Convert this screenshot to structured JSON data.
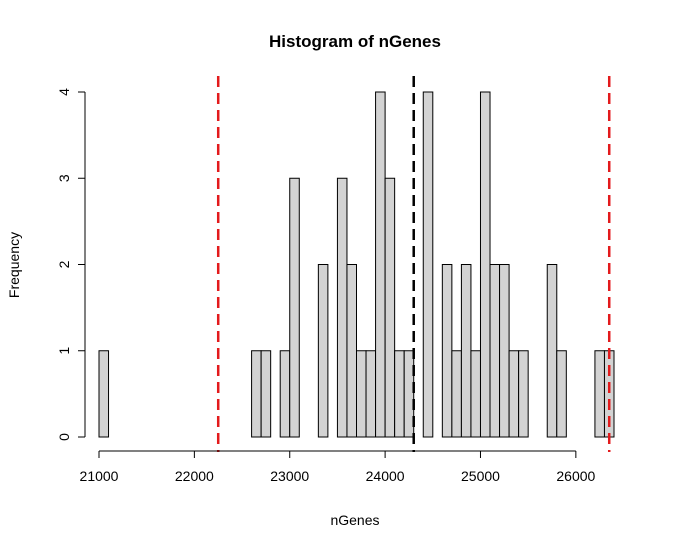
{
  "chart_data": {
    "type": "bar",
    "title": "Histogram of nGenes",
    "xlabel": "nGenes",
    "ylabel": "Frequency",
    "bin_width": 100,
    "xlim": [
      21000,
      26400
    ],
    "ylim": [
      0,
      4
    ],
    "x_ticks": [
      21000,
      22000,
      23000,
      24000,
      25000,
      26000
    ],
    "y_ticks": [
      0,
      1,
      2,
      3,
      4
    ],
    "bar_fill": "#d3d3d3",
    "bar_stroke": "#000000",
    "bins": [
      {
        "start": 21000,
        "count": 1
      },
      {
        "start": 22600,
        "count": 1
      },
      {
        "start": 22700,
        "count": 1
      },
      {
        "start": 22900,
        "count": 1
      },
      {
        "start": 23000,
        "count": 3
      },
      {
        "start": 23300,
        "count": 2
      },
      {
        "start": 23500,
        "count": 3
      },
      {
        "start": 23600,
        "count": 2
      },
      {
        "start": 23700,
        "count": 1
      },
      {
        "start": 23800,
        "count": 1
      },
      {
        "start": 23900,
        "count": 4
      },
      {
        "start": 24000,
        "count": 3
      },
      {
        "start": 24100,
        "count": 1
      },
      {
        "start": 24200,
        "count": 1
      },
      {
        "start": 24400,
        "count": 4
      },
      {
        "start": 24600,
        "count": 2
      },
      {
        "start": 24700,
        "count": 1
      },
      {
        "start": 24800,
        "count": 2
      },
      {
        "start": 24900,
        "count": 1
      },
      {
        "start": 25000,
        "count": 4
      },
      {
        "start": 25100,
        "count": 2
      },
      {
        "start": 25200,
        "count": 2
      },
      {
        "start": 25300,
        "count": 1
      },
      {
        "start": 25400,
        "count": 1
      },
      {
        "start": 25700,
        "count": 2
      },
      {
        "start": 25800,
        "count": 1
      },
      {
        "start": 26200,
        "count": 1
      },
      {
        "start": 26300,
        "count": 1
      }
    ],
    "reference_lines": [
      {
        "x": 22250,
        "color": "#e31a1c",
        "style": "dashed"
      },
      {
        "x": 24300,
        "color": "#000000",
        "style": "dashed"
      },
      {
        "x": 26350,
        "color": "#e31a1c",
        "style": "dashed"
      }
    ]
  }
}
